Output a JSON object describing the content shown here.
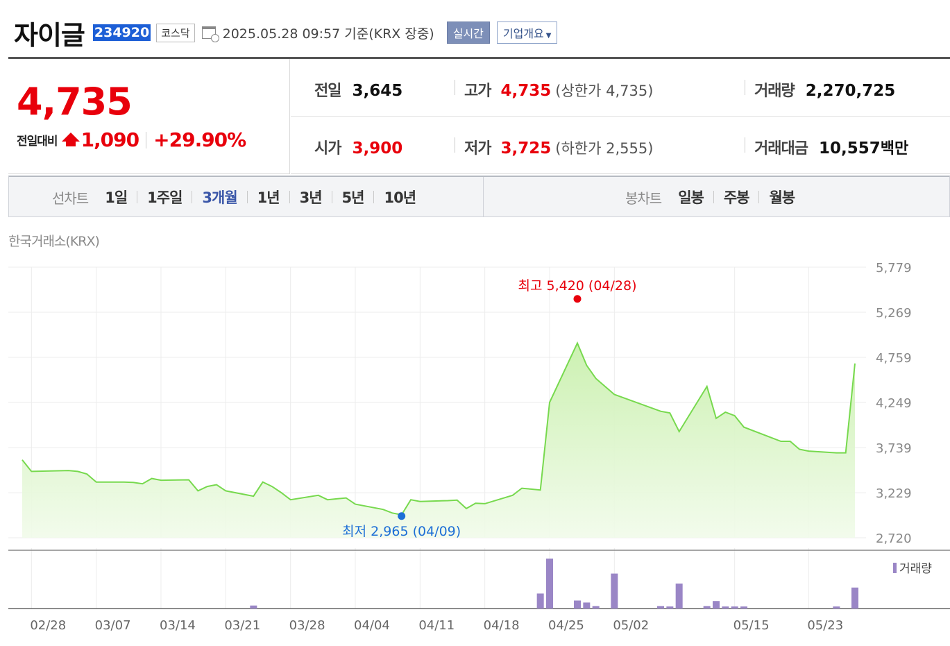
{
  "header": {
    "name": "자이글",
    "code": "234920",
    "market": "코스닥",
    "datetime": "2025.05.28 09:57  기준(KRX 장중)",
    "realtime_label": "실시간",
    "company_label": "기업개요",
    "calendar_icon": "calendar-clock-icon"
  },
  "price": {
    "current": "4,735",
    "change_label": "전일대비",
    "change": "1,090",
    "change_pct": "+29.90%",
    "direction_icon": "up-arrow-icon",
    "color": "#e8000b"
  },
  "stats": {
    "prev_label": "전일",
    "prev": "3,645",
    "high_label": "고가",
    "high": "4,735",
    "upper_limit": "(상한가 4,735)",
    "volume_label": "거래량",
    "volume": "2,270,725",
    "open_label": "시가",
    "open": "3,900",
    "low_label": "저가",
    "low": "3,725",
    "lower_limit": "(하한가 2,555)",
    "amount_label": "거래대금",
    "amount": "10,557",
    "amount_unit": "백만"
  },
  "tabs": {
    "line_chart_label": "선차트",
    "line_tabs": [
      "1일",
      "1주일",
      "3개월",
      "1년",
      "3년",
      "5년",
      "10년"
    ],
    "active": "3개월",
    "candle_chart_label": "봉차트",
    "candle_tabs": [
      "일봉",
      "주봉",
      "월봉"
    ]
  },
  "source": "한국거래소(KRX)",
  "chart_data": {
    "type": "area",
    "line_color": "#77d94e",
    "fill_color": "#d8f5c4",
    "ylim": [
      2720,
      5779
    ],
    "yticks": [
      "5,779",
      "5,269",
      "4,759",
      "4,249",
      "3,739",
      "3,229",
      "2,720"
    ],
    "ytick_values": [
      5779,
      5269,
      4759,
      4249,
      3739,
      3229,
      2720
    ],
    "xtick_labels": [
      "02/28",
      "03/07",
      "03/14",
      "03/21",
      "03/28",
      "04/04",
      "04/11",
      "04/18",
      "04/25",
      "05/02",
      "05/15",
      "05/23"
    ],
    "xtick_dates": [
      "2025-02-28",
      "2025-03-07",
      "2025-03-14",
      "2025-03-21",
      "2025-03-28",
      "2025-04-04",
      "2025-04-11",
      "2025-04-18",
      "2025-04-25",
      "2025-05-02",
      "2025-05-15",
      "2025-05-23"
    ],
    "dates": [
      "2025-02-27",
      "2025-02-28",
      "2025-03-04",
      "2025-03-05",
      "2025-03-06",
      "2025-03-07",
      "2025-03-10",
      "2025-03-11",
      "2025-03-12",
      "2025-03-13",
      "2025-03-14",
      "2025-03-17",
      "2025-03-18",
      "2025-03-19",
      "2025-03-20",
      "2025-03-21",
      "2025-03-24",
      "2025-03-25",
      "2025-03-26",
      "2025-03-27",
      "2025-03-28",
      "2025-03-31",
      "2025-04-01",
      "2025-04-02",
      "2025-04-03",
      "2025-04-04",
      "2025-04-07",
      "2025-04-08",
      "2025-04-09",
      "2025-04-10",
      "2025-04-11",
      "2025-04-14",
      "2025-04-15",
      "2025-04-16",
      "2025-04-17",
      "2025-04-18",
      "2025-04-21",
      "2025-04-22",
      "2025-04-23",
      "2025-04-24",
      "2025-04-25",
      "2025-04-28",
      "2025-04-29",
      "2025-04-30",
      "2025-05-02",
      "2025-05-07",
      "2025-05-08",
      "2025-05-09",
      "2025-05-12",
      "2025-05-13",
      "2025-05-14",
      "2025-05-15",
      "2025-05-16",
      "2025-05-19",
      "2025-05-20",
      "2025-05-21",
      "2025-05-22",
      "2025-05-23",
      "2025-05-26",
      "2025-05-27",
      "2025-05-28"
    ],
    "price": [
      3600,
      3470,
      3480,
      3470,
      3440,
      3350,
      3350,
      3345,
      3330,
      3390,
      3370,
      3375,
      3250,
      3300,
      3320,
      3250,
      3190,
      3350,
      3300,
      3230,
      3150,
      3200,
      3150,
      3160,
      3170,
      3100,
      3040,
      3000,
      2980,
      3150,
      3130,
      3140,
      3145,
      3050,
      3110,
      3105,
      3200,
      3280,
      3270,
      3260,
      4250,
      4920,
      4670,
      4520,
      4340,
      4150,
      4130,
      3920,
      4430,
      4070,
      4140,
      4100,
      3970,
      3850,
      3810,
      3810,
      3720,
      3700,
      3680,
      3680,
      4690
    ],
    "volume": [
      0,
      0,
      0,
      0,
      0,
      0,
      0,
      0,
      0,
      0,
      0,
      0,
      0,
      0,
      0,
      0,
      0.06,
      0,
      0,
      0,
      0,
      0,
      0,
      0,
      0,
      0,
      0,
      0,
      0,
      0,
      0,
      0,
      0,
      0,
      0,
      0,
      0,
      0,
      0,
      0.3,
      1.0,
      0.16,
      0.12,
      0.05,
      0.7,
      0.05,
      0.03,
      0.5,
      0.05,
      0.15,
      0.02,
      0.02,
      0.02,
      0,
      0,
      0,
      0,
      0,
      0.02,
      0,
      0.42
    ],
    "high": {
      "label": "최고 5,420 (04/28)",
      "value": 5420,
      "date": "2025-04-28",
      "color": "#e8000b"
    },
    "low": {
      "label": "최저 2,965 (04/09)",
      "value": 2965,
      "date": "2025-04-09",
      "color": "#1d6fd6"
    },
    "volume_legend": "거래량",
    "volume_color": "#9a86c6",
    "grid": true
  }
}
